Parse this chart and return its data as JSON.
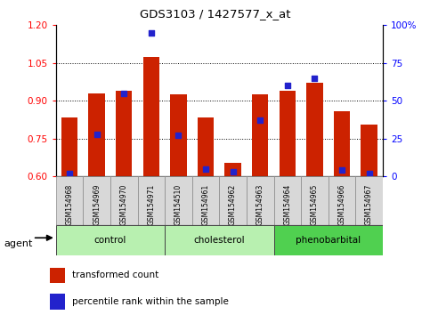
{
  "title": "GDS3103 / 1427577_x_at",
  "samples": [
    "GSM154968",
    "GSM154969",
    "GSM154970",
    "GSM154971",
    "GSM154510",
    "GSM154961",
    "GSM154962",
    "GSM154963",
    "GSM154964",
    "GSM154965",
    "GSM154966",
    "GSM154967"
  ],
  "group_info": [
    {
      "label": "control",
      "start": 0,
      "end": 3,
      "color": "#b8f0b0"
    },
    {
      "label": "cholesterol",
      "start": 4,
      "end": 7,
      "color": "#b8f0b0"
    },
    {
      "label": "phenobarbital",
      "start": 8,
      "end": 11,
      "color": "#50d050"
    }
  ],
  "transformed_counts": [
    0.835,
    0.93,
    0.94,
    1.075,
    0.925,
    0.835,
    0.655,
    0.925,
    0.94,
    0.97,
    0.86,
    0.805
  ],
  "percentile_ranks": [
    2,
    28,
    55,
    95,
    27,
    5,
    3,
    37,
    60,
    65,
    4,
    2
  ],
  "bar_color": "#cc2200",
  "dot_color": "#2222cc",
  "ylim_left": [
    0.6,
    1.2
  ],
  "ylim_right": [
    0,
    100
  ],
  "yticks_left": [
    0.6,
    0.75,
    0.9,
    1.05,
    1.2
  ],
  "yticks_right": [
    0,
    25,
    50,
    75,
    100
  ],
  "ytick_labels_right": [
    "0",
    "25",
    "50",
    "75",
    "100%"
  ],
  "bar_width": 0.6
}
